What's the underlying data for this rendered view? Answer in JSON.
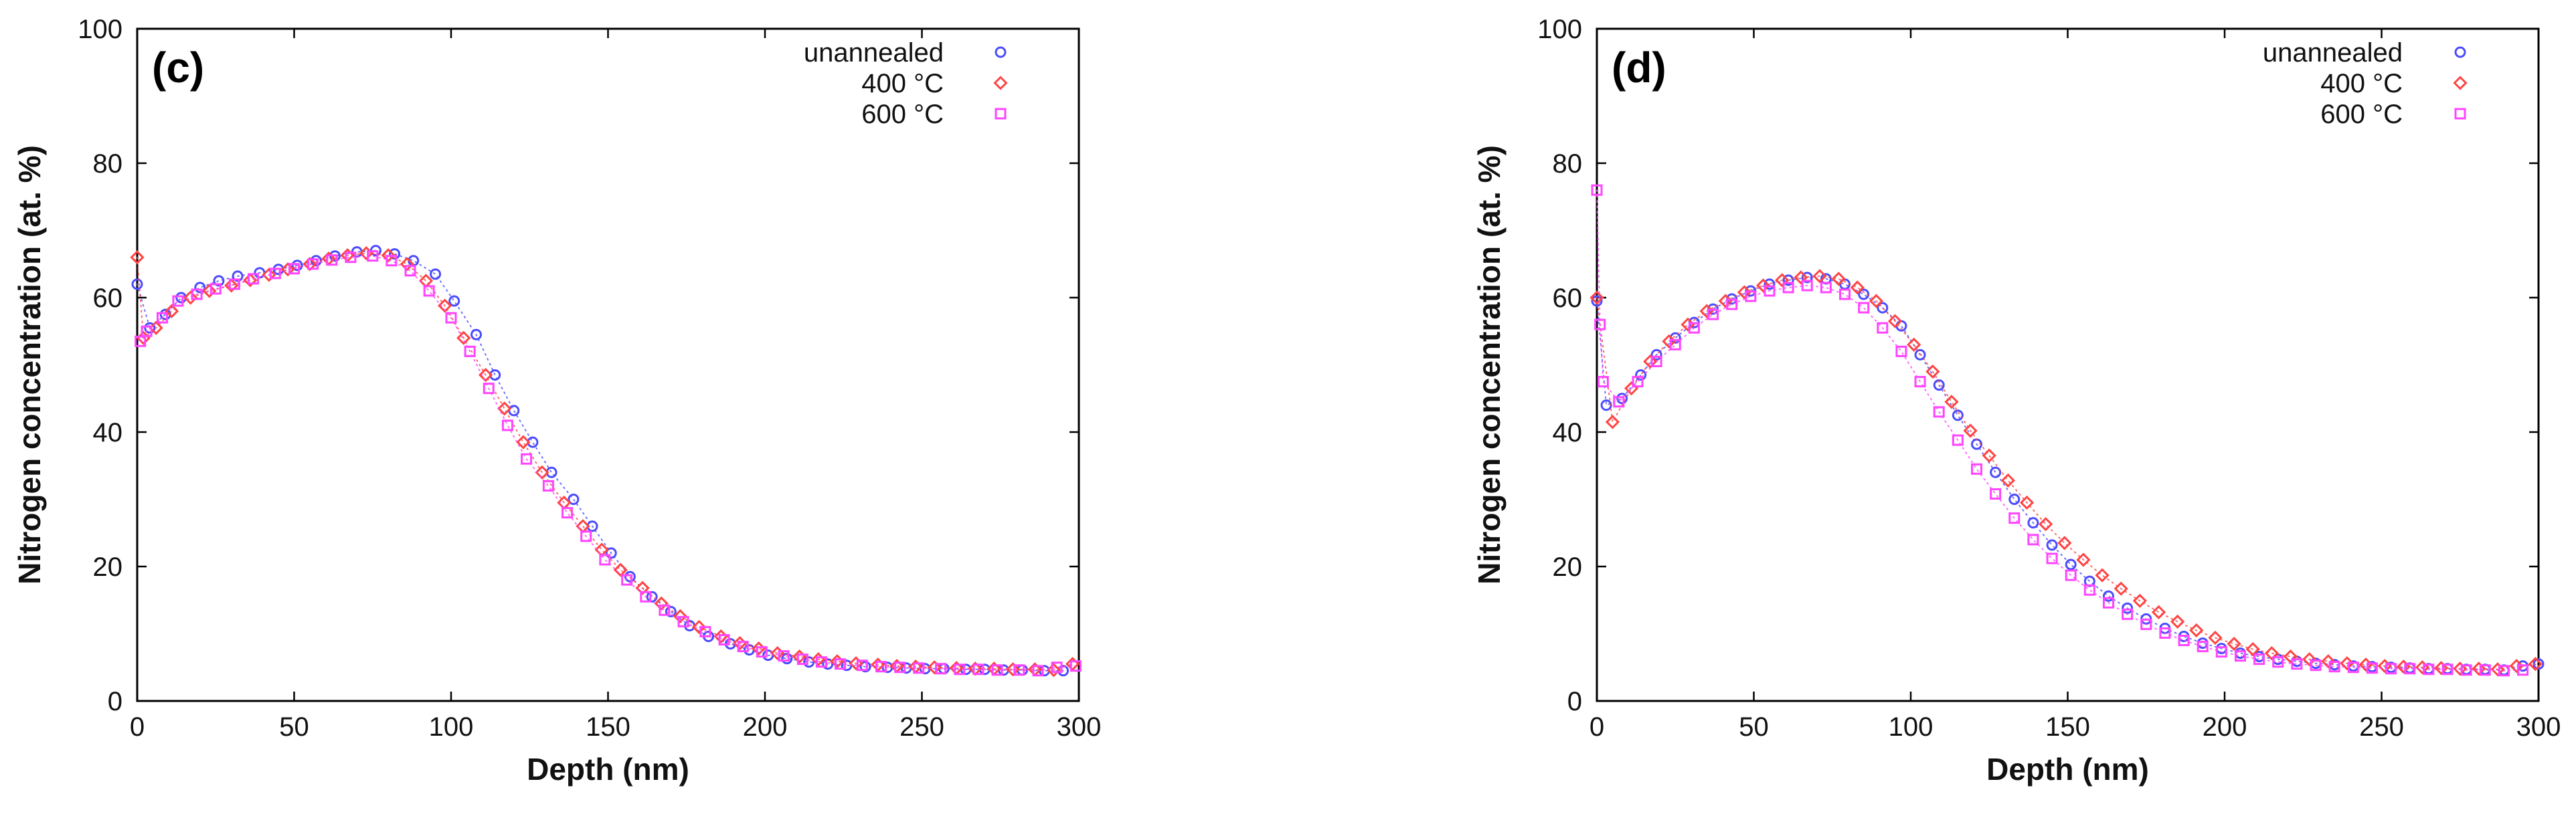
{
  "chart_data": [
    {
      "type": "scatter",
      "panel_label": "(c)",
      "xlabel": "Depth (nm)",
      "ylabel": "Nitrogen concentration (at. %)",
      "xlim": [
        0,
        300
      ],
      "ylim": [
        0,
        100
      ],
      "xticks": [
        0,
        50,
        100,
        150,
        200,
        250,
        300
      ],
      "yticks": [
        0,
        20,
        40,
        60,
        80,
        100
      ],
      "legend_position": "top-right",
      "series": [
        {
          "name": "unannealed",
          "color": "#4b4bff",
          "marker": "circle",
          "x": [
            0,
            4,
            9,
            14,
            20,
            26,
            32,
            39,
            45,
            51,
            57,
            63,
            70,
            76,
            82,
            88,
            95,
            101,
            108,
            114,
            120,
            126,
            132,
            139,
            145,
            151,
            157,
            164,
            170,
            176,
            182,
            189,
            195,
            201,
            207,
            214,
            220,
            226,
            232,
            239,
            245,
            251,
            257,
            264,
            270,
            276,
            282,
            289,
            295
          ],
          "y": [
            62,
            55.5,
            57.5,
            60,
            61.5,
            62.5,
            63.2,
            63.7,
            64.2,
            64.8,
            65.5,
            66.2,
            66.8,
            67,
            66.5,
            65.5,
            63.5,
            59.5,
            54.5,
            48.5,
            43.2,
            38.5,
            34,
            30,
            26,
            22,
            18.5,
            15.5,
            13.3,
            11.2,
            9.6,
            8.5,
            7.6,
            6.8,
            6.3,
            5.8,
            5.5,
            5.3,
            5.1,
            5,
            4.9,
            4.8,
            4.8,
            4.7,
            4.7,
            4.6,
            4.6,
            4.5,
            4.5
          ]
        },
        {
          "name": "400 °C",
          "color": "#ff4444",
          "marker": "diamond",
          "x": [
            0,
            2,
            6,
            11,
            17,
            23,
            30,
            36,
            42,
            48,
            55,
            61,
            67,
            73,
            80,
            86,
            92,
            98,
            104,
            111,
            117,
            123,
            129,
            136,
            142,
            148,
            154,
            161,
            167,
            173,
            179,
            186,
            192,
            198,
            204,
            211,
            217,
            223,
            229,
            236,
            242,
            248,
            254,
            261,
            267,
            273,
            279,
            286,
            292,
            298
          ],
          "y": [
            66,
            54,
            55.5,
            58,
            60,
            61,
            61.8,
            62.6,
            63.4,
            64.2,
            65,
            65.8,
            66.3,
            66.6,
            66.3,
            65,
            62.5,
            58.8,
            54,
            48.5,
            43.5,
            38.5,
            34,
            29.5,
            26,
            22.5,
            19.5,
            16.8,
            14.5,
            12.6,
            11,
            9.6,
            8.6,
            7.8,
            7.1,
            6.6,
            6.2,
            5.9,
            5.6,
            5.4,
            5.2,
            5.1,
            5,
            4.9,
            4.8,
            4.8,
            4.7,
            4.7,
            4.6,
            5.5
          ]
        },
        {
          "name": "600 °C",
          "color": "#ff44ff",
          "marker": "square",
          "x": [
            1,
            3,
            8,
            13,
            19,
            25,
            31,
            37,
            44,
            50,
            56,
            62,
            68,
            75,
            81,
            87,
            93,
            100,
            106,
            112,
            118,
            124,
            131,
            137,
            143,
            149,
            156,
            162,
            168,
            174,
            181,
            187,
            193,
            199,
            206,
            212,
            218,
            224,
            231,
            237,
            243,
            249,
            256,
            262,
            268,
            274,
            281,
            287,
            293,
            299
          ],
          "y": [
            53.5,
            55,
            57,
            59.5,
            60.5,
            61.3,
            62,
            62.8,
            63.6,
            64.3,
            65,
            65.6,
            66,
            66.2,
            65.5,
            64,
            61,
            57,
            52,
            46.5,
            41,
            36,
            32,
            28,
            24.5,
            21,
            18,
            15.5,
            13.5,
            11.8,
            10.3,
            9.1,
            8.1,
            7.3,
            6.7,
            6.2,
            5.8,
            5.5,
            5.3,
            5.1,
            5,
            4.9,
            4.8,
            4.7,
            4.7,
            4.6,
            4.6,
            4.5,
            5,
            5.2
          ]
        }
      ]
    },
    {
      "type": "scatter",
      "panel_label": "(d)",
      "xlabel": "Depth (nm)",
      "ylabel": "Nitrogen concentration (at. %)",
      "xlim": [
        0,
        300
      ],
      "ylim": [
        0,
        100
      ],
      "xticks": [
        0,
        50,
        100,
        150,
        200,
        250,
        300
      ],
      "yticks": [
        0,
        20,
        40,
        60,
        80,
        100
      ],
      "legend_position": "top-right",
      "series": [
        {
          "name": "unannealed",
          "color": "#4b4bff",
          "marker": "circle",
          "x": [
            0,
            3,
            8,
            14,
            19,
            25,
            31,
            37,
            43,
            49,
            55,
            61,
            67,
            73,
            79,
            85,
            91,
            97,
            103,
            109,
            115,
            121,
            127,
            133,
            139,
            145,
            151,
            157,
            163,
            169,
            175,
            181,
            187,
            193,
            199,
            205,
            211,
            217,
            223,
            229,
            235,
            241,
            247,
            253,
            259,
            265,
            271,
            277,
            283,
            289,
            295,
            300
          ],
          "y": [
            59.5,
            44,
            45,
            48.5,
            51.5,
            54,
            56.3,
            58.3,
            59.8,
            61,
            62,
            62.6,
            63,
            62.8,
            62,
            60.5,
            58.5,
            55.8,
            51.5,
            47,
            42.5,
            38.2,
            34,
            30,
            26.5,
            23.2,
            20.3,
            17.8,
            15.6,
            13.8,
            12.2,
            10.8,
            9.6,
            8.6,
            7.8,
            7.1,
            6.6,
            6.2,
            5.9,
            5.6,
            5.4,
            5.2,
            5.1,
            5,
            4.9,
            4.8,
            4.8,
            4.7,
            4.7,
            4.6,
            5.2,
            5.5
          ]
        },
        {
          "name": "400 °C",
          "color": "#ff4444",
          "marker": "diamond",
          "x": [
            0,
            5,
            11,
            17,
            23,
            29,
            35,
            41,
            47,
            53,
            59,
            65,
            71,
            77,
            83,
            89,
            95,
            101,
            107,
            113,
            119,
            125,
            131,
            137,
            143,
            149,
            155,
            161,
            167,
            173,
            179,
            185,
            191,
            197,
            203,
            209,
            215,
            221,
            227,
            233,
            239,
            245,
            251,
            257,
            263,
            269,
            275,
            281,
            287,
            293,
            299
          ],
          "y": [
            60,
            41.5,
            46.5,
            50.5,
            53.5,
            56,
            58,
            59.5,
            60.8,
            61.8,
            62.6,
            63,
            63.2,
            62.8,
            61.5,
            59.5,
            56.5,
            53,
            49,
            44.5,
            40.2,
            36.5,
            32.8,
            29.5,
            26.3,
            23.5,
            21,
            18.7,
            16.7,
            14.9,
            13.2,
            11.8,
            10.5,
            9.4,
            8.5,
            7.7,
            7.1,
            6.6,
            6.2,
            5.9,
            5.6,
            5.4,
            5.2,
            5.1,
            5,
            4.9,
            4.8,
            4.8,
            4.7,
            5.2,
            5.5
          ]
        },
        {
          "name": "600 °C",
          "color": "#ff44ff",
          "marker": "square",
          "x": [
            0,
            1,
            2,
            7,
            13,
            19,
            25,
            31,
            37,
            43,
            49,
            55,
            61,
            67,
            73,
            79,
            85,
            91,
            97,
            103,
            109,
            115,
            121,
            127,
            133,
            139,
            145,
            151,
            157,
            163,
            169,
            175,
            181,
            187,
            193,
            199,
            205,
            211,
            217,
            223,
            229,
            235,
            241,
            247,
            253,
            259,
            265,
            271,
            277,
            283,
            289,
            295
          ],
          "y": [
            76,
            56,
            47.5,
            44.5,
            47.5,
            50.5,
            53,
            55.5,
            57.5,
            59,
            60.2,
            61,
            61.5,
            61.8,
            61.5,
            60.5,
            58.5,
            55.5,
            52,
            47.5,
            43,
            38.8,
            34.5,
            30.8,
            27.2,
            24,
            21.2,
            18.7,
            16.5,
            14.6,
            12.9,
            11.4,
            10.1,
            9,
            8.1,
            7.3,
            6.7,
            6.2,
            5.8,
            5.5,
            5.3,
            5.1,
            5,
            4.9,
            4.8,
            4.8,
            4.7,
            4.7,
            4.6,
            4.6,
            4.5,
            4.6
          ]
        }
      ]
    }
  ]
}
